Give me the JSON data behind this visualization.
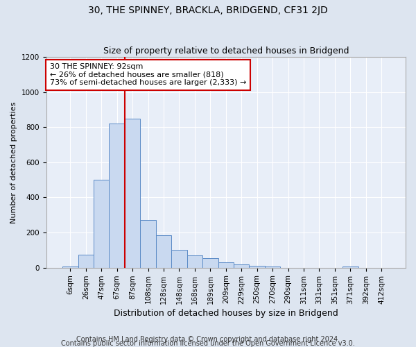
{
  "title": "30, THE SPINNEY, BRACKLA, BRIDGEND, CF31 2JD",
  "subtitle": "Size of property relative to detached houses in Bridgend",
  "xlabel": "Distribution of detached houses by size in Bridgend",
  "ylabel": "Number of detached properties",
  "categories": [
    "6sqm",
    "26sqm",
    "47sqm",
    "67sqm",
    "87sqm",
    "108sqm",
    "128sqm",
    "148sqm",
    "168sqm",
    "189sqm",
    "209sqm",
    "229sqm",
    "250sqm",
    "270sqm",
    "290sqm",
    "311sqm",
    "331sqm",
    "351sqm",
    "371sqm",
    "392sqm",
    "412sqm"
  ],
  "values": [
    5,
    75,
    500,
    820,
    850,
    270,
    185,
    100,
    70,
    55,
    30,
    18,
    12,
    5,
    0,
    0,
    0,
    0,
    5,
    0,
    0
  ],
  "bar_color": "#c9d9f0",
  "bar_edge_color": "#5a8ac6",
  "vline_color": "#cc0000",
  "vline_pos": 3.5,
  "annotation_text": "30 THE SPINNEY: 92sqm\n← 26% of detached houses are smaller (818)\n73% of semi-detached houses are larger (2,333) →",
  "annotation_box_color": "#ffffff",
  "annotation_box_edge": "#cc0000",
  "ylim": [
    0,
    1200
  ],
  "yticks": [
    0,
    200,
    400,
    600,
    800,
    1000,
    1200
  ],
  "footer1": "Contains HM Land Registry data © Crown copyright and database right 2024.",
  "footer2": "Contains public sector information licensed under the Open Government Licence v3.0.",
  "background_color": "#dde5f0",
  "plot_bg_color": "#e8eef8",
  "grid_color": "#ffffff",
  "title_fontsize": 10,
  "subtitle_fontsize": 9,
  "annotation_fontsize": 8,
  "footer_fontsize": 7,
  "tick_fontsize": 7.5,
  "ylabel_fontsize": 8,
  "xlabel_fontsize": 9
}
